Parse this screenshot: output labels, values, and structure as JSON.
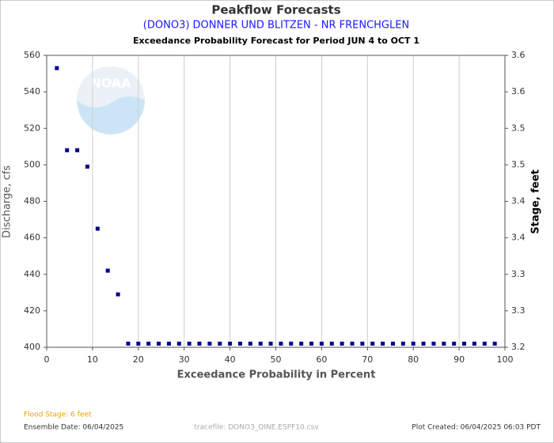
{
  "chart_data": {
    "type": "scatter",
    "title": "Peakflow Forecasts",
    "subtitle": "(DONO3) DONNER UND BLITZEN - NR FRENCHGLEN",
    "caption": "Exceedance Probability Forecast for Period JUN 4 to OCT 1",
    "x_label": "Exceedance Probability in Percent",
    "y_label": "Discharge, cfs",
    "y2_label": "Stage, feet",
    "logo_text": "NOAA",
    "color": "#00008b",
    "x": [
      2.22,
      4.44,
      6.67,
      8.89,
      11.11,
      13.33,
      15.56,
      17.78,
      20,
      22.22,
      24.44,
      26.67,
      28.89,
      31.11,
      33.33,
      35.56,
      37.78,
      40,
      42.22,
      44.44,
      46.67,
      48.89,
      51.11,
      53.33,
      55.56,
      57.78,
      60,
      62.22,
      64.44,
      66.67,
      68.89,
      71.11,
      73.33,
      75.56,
      77.78,
      80,
      82.22,
      84.44,
      86.67,
      88.89,
      91.11,
      93.33,
      95.56,
      97.78
    ],
    "values": [
      553,
      508,
      508,
      499,
      465,
      442,
      429,
      402,
      402,
      402,
      402,
      402,
      402,
      402,
      402,
      402,
      402,
      402,
      402,
      402,
      402,
      402,
      402,
      402,
      402,
      402,
      402,
      402,
      402,
      402,
      402,
      402,
      402,
      402,
      402,
      402,
      402,
      402,
      402,
      402,
      402,
      402,
      402,
      402
    ],
    "xlim": [
      0,
      100
    ],
    "xticks": [
      0,
      10,
      20,
      30,
      40,
      50,
      60,
      70,
      80,
      90,
      100
    ],
    "ylim": [
      400,
      560
    ],
    "yticks": [
      400,
      420,
      440,
      460,
      480,
      500,
      520,
      540,
      560
    ],
    "y2lim": [
      3.2,
      3.6
    ],
    "y2ticks": [
      3.2,
      {
        "value": 3.25,
        "label": "3.3"
      },
      3.3,
      {
        "value": 3.35,
        "label": "3.4"
      },
      3.4,
      {
        "value": 3.45,
        "label": "3.5"
      },
      3.5,
      {
        "value": 3.55,
        "label": "3.6"
      },
      3.6
    ],
    "x_grid": true
  },
  "footer": {
    "flood_stage": "Flood Stage: 6 feet",
    "ensemble_date": "Ensemble Date: 06/04/2025",
    "tracefile": "tracefile: DONO3_QINE.ESPF10.csv",
    "plot_created": "Plot Created: 06/04/2025 06:03 PDT"
  }
}
